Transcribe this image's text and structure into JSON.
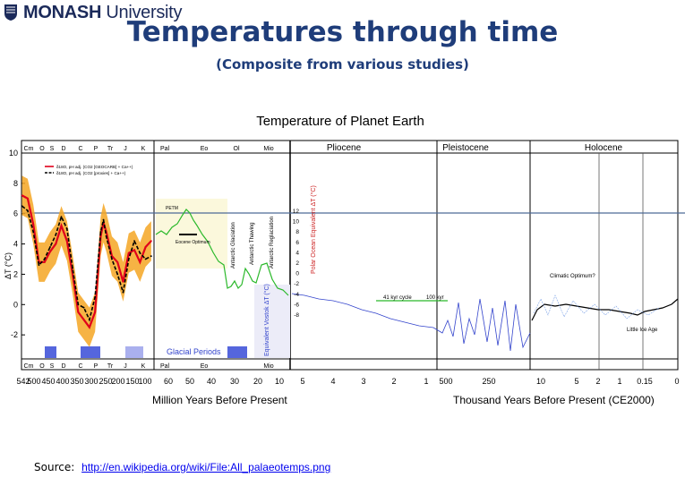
{
  "header": {
    "logo_bold": "MONASH",
    "logo_rest": " University",
    "title": "Temperatures through time",
    "subtitle": "(Composite from various studies)"
  },
  "footer": {
    "source_label": "Source:",
    "source_link": "http://en.wikipedia.org/wiki/File:All_palaeotemps.png"
  },
  "chart_data": {
    "type": "line",
    "title": "Temperature of Planet Earth",
    "ylabel": "ΔT (°C)",
    "ylim": [
      -4,
      10
    ],
    "yticks": [
      "10",
      "8",
      "6",
      "4",
      "2",
      "0",
      "-2"
    ],
    "grid": false,
    "reference_line_y": 6,
    "period_labels_top": [
      "Cm",
      "O",
      "S",
      "D",
      "C",
      "P",
      "Tr",
      "J",
      "K",
      "Pal",
      "Eo",
      "Ol",
      "Mio"
    ],
    "period_labels_bottom": [
      "Cm",
      "O",
      "S",
      "D",
      "C",
      "P",
      "Tr",
      "J",
      "K",
      "Pal",
      "Eo",
      "Mio"
    ],
    "epochs": [
      "Pliocene",
      "Pleistocene",
      "Holocene"
    ],
    "panel1_xticks": [
      "542",
      "500",
      "450",
      "400",
      "350",
      "300",
      "250",
      "200",
      "150",
      "100"
    ],
    "panel2_xticks": [
      "60",
      "50",
      "40",
      "30",
      "20",
      "10"
    ],
    "panel3_xticks": [
      "5",
      "4",
      "3",
      "2",
      "1"
    ],
    "panel4_xticks": [
      "500",
      "250"
    ],
    "panel5_xticks": [
      "10",
      "5",
      "2",
      "1",
      "0.15",
      "0"
    ],
    "xlabel_left": "Million Years Before Present",
    "xlabel_right": "Thousand Years Before Present (CE2000)",
    "legend": [
      "δ18O, pH adj. (CO2 [GEOCARB] + Ca++)",
      "δ18O, pH adj. (CO2 [proxies] + Ca++)"
    ],
    "annotations": {
      "glacial_periods": "Glacial Periods",
      "petm": "PETM",
      "eocene_optimum": "Eocene Optimum",
      "antarctic_glaciation": "Antarctic Glaciation",
      "antarctic_thawing": "Antarctic Thawing",
      "antarctic_reglaciation": "Antarctic Reglaciation",
      "polar_axis": "Polar Ocean Equivalent ΔT (°C)",
      "vostok_axis": "Equivalent Vostok ΔT (°C)",
      "cycle41": "41 kyr cycle",
      "cycle100": "100 kyr",
      "climatic_optimum": "Climatic Optimum?",
      "little_ice_age": "Little Ice Age"
    },
    "polar_ticks": [
      "12",
      "10",
      "8",
      "6",
      "4",
      "2",
      "0",
      "-2",
      "-4",
      "-6",
      "-8"
    ],
    "series": [
      {
        "name": "δ18O, pH adj. (CO2 [GEOCARB] + Ca++)",
        "color": "#e0001b",
        "x": [
          540,
          520,
          500,
          480,
          460,
          440,
          420,
          400,
          380,
          360,
          340,
          320,
          300,
          280,
          260,
          250,
          240,
          220,
          200,
          180,
          160,
          140,
          120,
          100,
          80
        ],
        "values": [
          7.2,
          7.0,
          5.3,
          2.8,
          2.8,
          3.5,
          4.0,
          5.2,
          4.2,
          2.0,
          -0.5,
          -1.0,
          -1.5,
          -0.5,
          4.5,
          5.4,
          4.8,
          3.2,
          2.8,
          1.5,
          3.4,
          3.6,
          2.8,
          3.8,
          4.2
        ]
      },
      {
        "name": "δ18O, pH adj. (CO2 [proxies] + Ca++)",
        "color": "#000000",
        "x": [
          540,
          520,
          500,
          480,
          460,
          440,
          420,
          400,
          380,
          360,
          340,
          320,
          300,
          280,
          260,
          250,
          240,
          220,
          200,
          180,
          160,
          140,
          120,
          100,
          80
        ],
        "values": [
          6.5,
          6.2,
          4.8,
          2.6,
          3.0,
          3.8,
          4.6,
          5.8,
          5.0,
          2.4,
          0.0,
          -0.2,
          -1.0,
          0.5,
          4.8,
          5.6,
          4.5,
          3.0,
          2.0,
          0.8,
          3.0,
          4.2,
          3.4,
          3.0,
          3.2
        ]
      }
    ]
  }
}
